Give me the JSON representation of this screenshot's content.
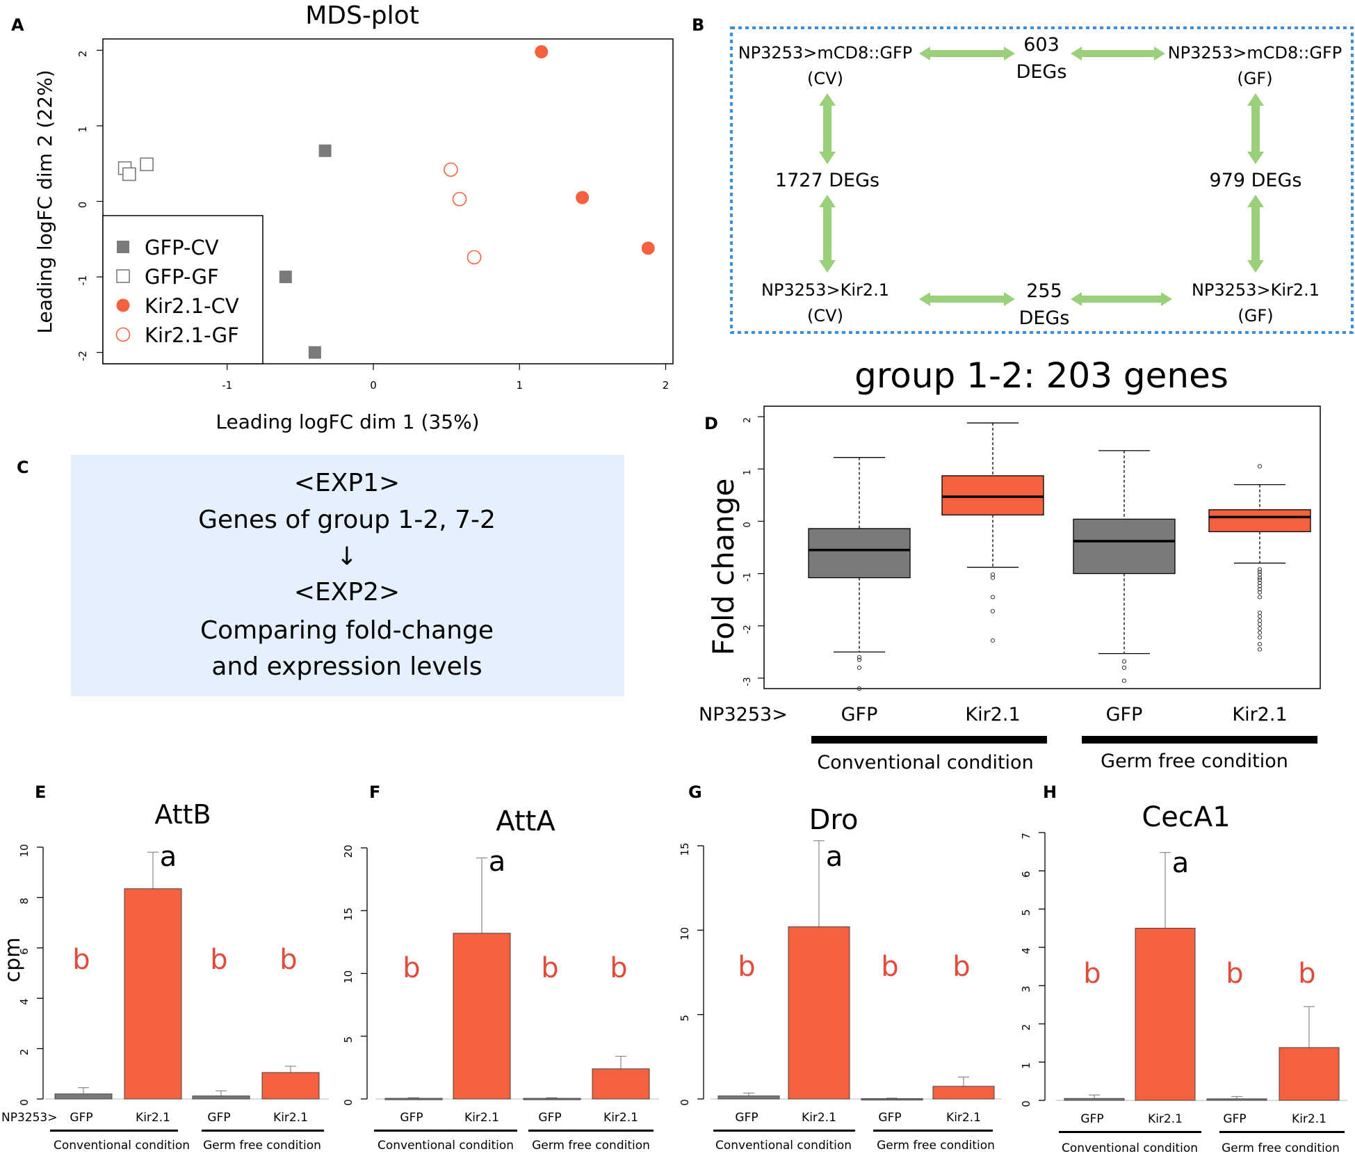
{
  "panels": {
    "A": {
      "letter": "A",
      "chart_data": {
        "type": "scatter",
        "title": "MDS-plot",
        "xlabel": "Leading logFC dim 1 (35%)",
        "ylabel": "Leading logFC dim 2 (22%)",
        "xlim": [
          -1.85,
          2.05
        ],
        "ylim": [
          -2.15,
          2.15
        ],
        "xticks": [
          -1,
          0,
          1,
          2
        ],
        "yticks": [
          -2,
          -1,
          0,
          1,
          2
        ],
        "series": [
          {
            "name": "GFP-CV",
            "color": "#7a7a7a",
            "marker": "square-filled",
            "points": [
              [
                -0.33,
                0.67
              ],
              [
                -0.6,
                -1.0
              ],
              [
                -0.4,
                -2.0
              ]
            ]
          },
          {
            "name": "GFP-GF",
            "color": "#7a7a7a",
            "marker": "square-open",
            "points": [
              [
                -1.7,
                0.44
              ],
              [
                -1.67,
                0.36
              ],
              [
                -1.55,
                0.49
              ]
            ]
          },
          {
            "name": "Kir2.1-CV",
            "color": "#f4613f",
            "marker": "circle-filled",
            "points": [
              [
                1.15,
                1.98
              ],
              [
                1.43,
                0.05
              ],
              [
                1.88,
                -0.62
              ]
            ]
          },
          {
            "name": "Kir2.1-GF",
            "color": "#f4613f",
            "marker": "circle-open",
            "points": [
              [
                0.53,
                0.42
              ],
              [
                0.59,
                0.03
              ],
              [
                0.69,
                -0.74
              ]
            ]
          }
        ]
      }
    },
    "B": {
      "letter": "B",
      "nodes": {
        "tl": [
          "NP3253>mCD8::GFP",
          "(CV)"
        ],
        "tr": [
          "NP3253>mCD8::GFP",
          "(GF)"
        ],
        "bl": [
          "NP3253>Kir2.1",
          "(CV)"
        ],
        "br": [
          "NP3253>Kir2.1",
          "(GF)"
        ]
      },
      "edges": {
        "top": [
          "603",
          "DEGs"
        ],
        "bottom": [
          "255",
          "DEGs"
        ],
        "left": "1727 DEGs",
        "right": "979 DEGs"
      },
      "arrow_color": "#9bd07a",
      "border_color": "#3a8fd6"
    },
    "C": {
      "letter": "C",
      "lines": [
        "<EXP1>",
        "Genes of group 1-2, 7-2",
        "↓",
        "<EXP2>",
        "Comparing fold-change",
        "and expression levels"
      ],
      "bg_color": "#e4f0fb"
    },
    "D": {
      "letter": "D",
      "prefix": "NP3253>",
      "chart_data": {
        "type": "box",
        "title": "group 1-2: 203 genes",
        "ylabel": "Fold change",
        "ylim": [
          -3.2,
          2.2
        ],
        "yticks": [
          -3,
          -2,
          -1,
          0,
          1,
          2
        ],
        "categories": [
          "GFP",
          "Kir2.1",
          "GFP",
          "Kir2.1"
        ],
        "groups": [
          "Conventional condition",
          "Germ free condition"
        ],
        "boxes": [
          {
            "color": "#7a7a7a",
            "q1": -1.08,
            "median": -0.55,
            "q3": -0.14,
            "whisker_low": -2.5,
            "whisker_high": 1.22,
            "outliers": [
              -2.6,
              -2.65,
              -2.8,
              -3.2
            ]
          },
          {
            "color": "#f4613f",
            "q1": 0.12,
            "median": 0.47,
            "q3": 0.87,
            "whisker_low": -0.88,
            "whisker_high": 1.88,
            "outliers": [
              -1.02,
              -1.08,
              -1.45,
              -1.72,
              -2.28
            ]
          },
          {
            "color": "#7a7a7a",
            "q1": -1.0,
            "median": -0.38,
            "q3": 0.04,
            "whisker_low": -2.53,
            "whisker_high": 1.35,
            "outliers": [
              -2.68,
              -2.8,
              -3.05
            ]
          },
          {
            "color": "#f4613f",
            "q1": -0.2,
            "median": 0.08,
            "q3": 0.22,
            "whisker_low": -0.8,
            "whisker_high": 0.7,
            "outliers": [
              1.05,
              -0.92,
              -0.97,
              -1.02,
              -1.08,
              -1.12,
              -1.18,
              -1.24,
              -1.3,
              -1.36,
              -1.45,
              -1.75,
              -1.82,
              -1.9,
              -1.97,
              -2.05,
              -2.13,
              -2.22,
              -2.35,
              -2.45
            ]
          }
        ]
      }
    },
    "bars": [
      {
        "letter": "E",
        "chart_data": {
          "type": "bar",
          "title": "AttB",
          "ylabel": "cpm",
          "ylim": [
            0,
            10
          ],
          "yticks": [
            0,
            2,
            4,
            6,
            8,
            10
          ],
          "categories": [
            "GFP",
            "Kir2.1",
            "GFP",
            "Kir2.1"
          ],
          "values": [
            0.2,
            8.35,
            0.12,
            1.05
          ],
          "errors": [
            0.45,
            9.8,
            0.32,
            1.3
          ],
          "colors": [
            "#7a7a7a",
            "#f4613f",
            "#7a7a7a",
            "#f4613f"
          ],
          "significance": [
            "b",
            "a",
            "b",
            "b"
          ],
          "groups": [
            "Conventional condition",
            "Germ free condition"
          ]
        }
      },
      {
        "letter": "F",
        "chart_data": {
          "type": "bar",
          "title": "AttA",
          "ylabel": "",
          "ylim": [
            0,
            20
          ],
          "yticks": [
            0,
            5,
            10,
            15,
            20
          ],
          "categories": [
            "GFP",
            "Kir2.1",
            "GFP",
            "Kir2.1"
          ],
          "values": [
            0.05,
            13.2,
            0.05,
            2.4
          ],
          "errors": [
            0.1,
            19.2,
            0.1,
            3.4
          ],
          "colors": [
            "#7a7a7a",
            "#f4613f",
            "#7a7a7a",
            "#f4613f"
          ],
          "significance": [
            "b",
            "a",
            "b",
            "b"
          ],
          "groups": [
            "Conventional condition",
            "Germ free condition"
          ]
        }
      },
      {
        "letter": "G",
        "chart_data": {
          "type": "bar",
          "title": "Dro",
          "ylabel": "",
          "ylim": [
            0,
            15
          ],
          "yticks": [
            0,
            5,
            10,
            15
          ],
          "categories": [
            "GFP",
            "Kir2.1",
            "GFP",
            "Kir2.1"
          ],
          "values": [
            0.18,
            10.2,
            0.02,
            0.75
          ],
          "errors": [
            0.35,
            15.3,
            0.05,
            1.3
          ],
          "colors": [
            "#7a7a7a",
            "#f4613f",
            "#7a7a7a",
            "#f4613f"
          ],
          "significance": [
            "b",
            "a",
            "b",
            "b"
          ],
          "groups": [
            "Conventional condition",
            "Germ free condition"
          ]
        }
      },
      {
        "letter": "H",
        "chart_data": {
          "type": "bar",
          "title": "CecA1",
          "ylabel": "",
          "ylim": [
            0,
            7
          ],
          "yticks": [
            0,
            1,
            2,
            3,
            4,
            5,
            6,
            7
          ],
          "categories": [
            "GFP",
            "Kir2.1",
            "GFP",
            "Kir2.1"
          ],
          "values": [
            0.05,
            4.5,
            0.04,
            1.38
          ],
          "errors": [
            0.14,
            6.48,
            0.1,
            2.45
          ],
          "colors": [
            "#7a7a7a",
            "#f4613f",
            "#7a7a7a",
            "#f4613f"
          ],
          "significance": [
            "b",
            "a",
            "b",
            "b"
          ],
          "groups": [
            "Conventional condition",
            "Germ free condition"
          ]
        }
      }
    ],
    "bars_prefix": "NP3253>"
  }
}
